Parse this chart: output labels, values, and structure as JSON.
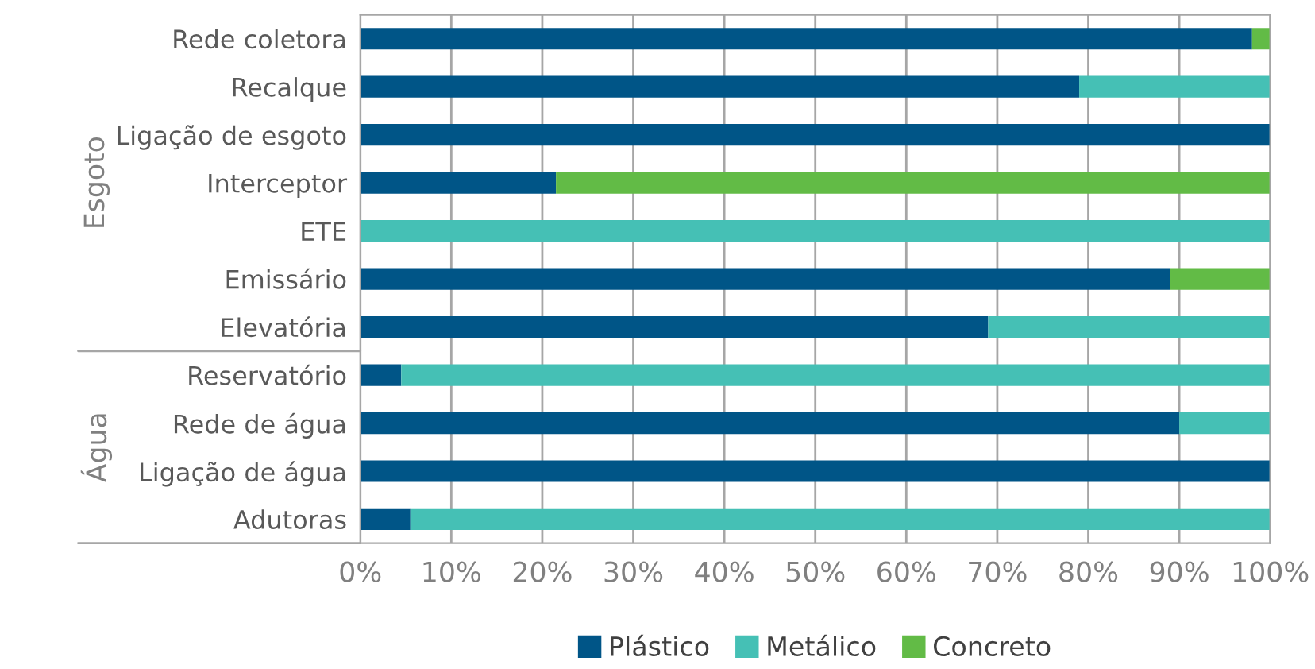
{
  "chart_data": {
    "type": "bar",
    "orientation": "horizontal",
    "stacked": true,
    "categories": [
      "Rede coletora",
      "Recalque",
      "Ligação de esgoto",
      "Interceptor",
      "ETE",
      "Emissário",
      "Elevatória",
      "Reservatório",
      "Rede de água",
      "Ligação de água",
      "Adutoras"
    ],
    "series": [
      {
        "name": "Plástico",
        "color": "#005587",
        "values": [
          98,
          79,
          100,
          21.5,
          0,
          89,
          69,
          4.5,
          90,
          100,
          5.5
        ]
      },
      {
        "name": "Metálico",
        "color": "#45c0b5",
        "values": [
          0,
          21,
          0,
          0,
          100,
          0,
          31,
          95.5,
          10,
          0,
          94.5
        ]
      },
      {
        "name": "Concreto",
        "color": "#62bb46",
        "values": [
          2,
          0,
          0,
          78.5,
          0,
          11,
          0,
          0,
          0,
          0,
          0
        ]
      }
    ],
    "xlim": [
      0,
      100
    ],
    "xticks": [
      {
        "value": 0,
        "label": "0%"
      },
      {
        "value": 10,
        "label": "10%"
      },
      {
        "value": 20,
        "label": "20%"
      },
      {
        "value": 30,
        "label": "30%"
      },
      {
        "value": 40,
        "label": "40%"
      },
      {
        "value": 50,
        "label": "50%"
      },
      {
        "value": 60,
        "label": "60%"
      },
      {
        "value": 70,
        "label": "70%"
      },
      {
        "value": 80,
        "label": "80%"
      },
      {
        "value": 90,
        "label": "90%"
      },
      {
        "value": 100,
        "label": "100%"
      }
    ],
    "annotations": [
      "Esgoto",
      "Água"
    ],
    "grid": "x",
    "legend": "bottom"
  }
}
